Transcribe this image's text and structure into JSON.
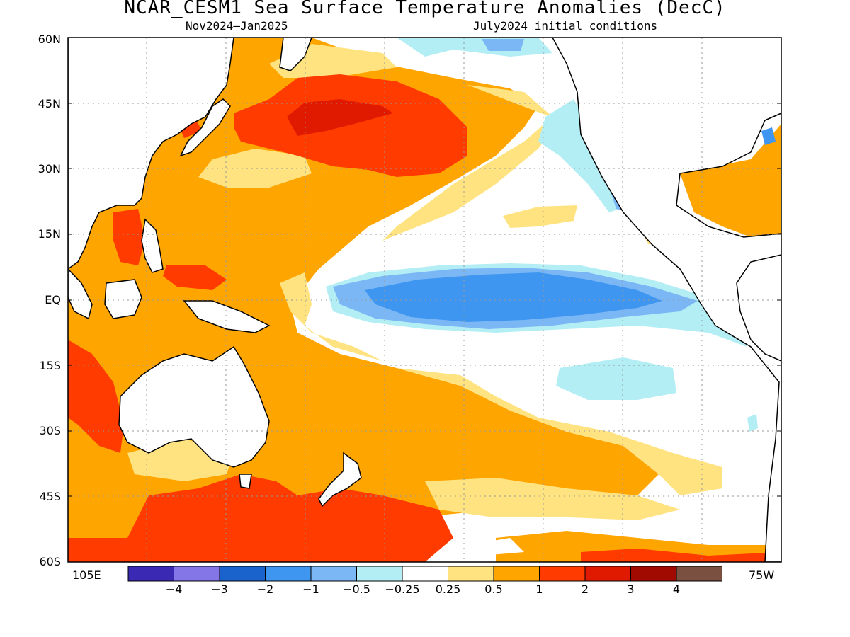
{
  "title": "NCAR_CESM1 Sea Surface Temperature Anomalies (DecC)",
  "subtitle_left": "Nov2024–Jan2025",
  "subtitle_right": "July2024 initial conditions",
  "y_ticks": [
    "60N",
    "45N",
    "30N",
    "15N",
    "EQ",
    "15S",
    "30S",
    "45S",
    "60S"
  ],
  "x_tick_left": "105E",
  "x_tick_right": "75W",
  "colorbar": {
    "colors": [
      "#3a2ab3",
      "#8576e8",
      "#1a63cc",
      "#3f96f0",
      "#7bb7f5",
      "#b3eef5",
      "#ffffff",
      "#ffe380",
      "#ffa500",
      "#ff3b00",
      "#e01a00",
      "#a00a00",
      "#7a5040"
    ],
    "labels": [
      "−4",
      "−3",
      "−2",
      "−1",
      "−0.5",
      "−0.25",
      "0.25",
      "0.5",
      "1",
      "2",
      "3",
      "4"
    ]
  },
  "colors": {
    "land": "#ffffff",
    "coast": "#000000",
    "grid": "#9a9a9a"
  }
}
